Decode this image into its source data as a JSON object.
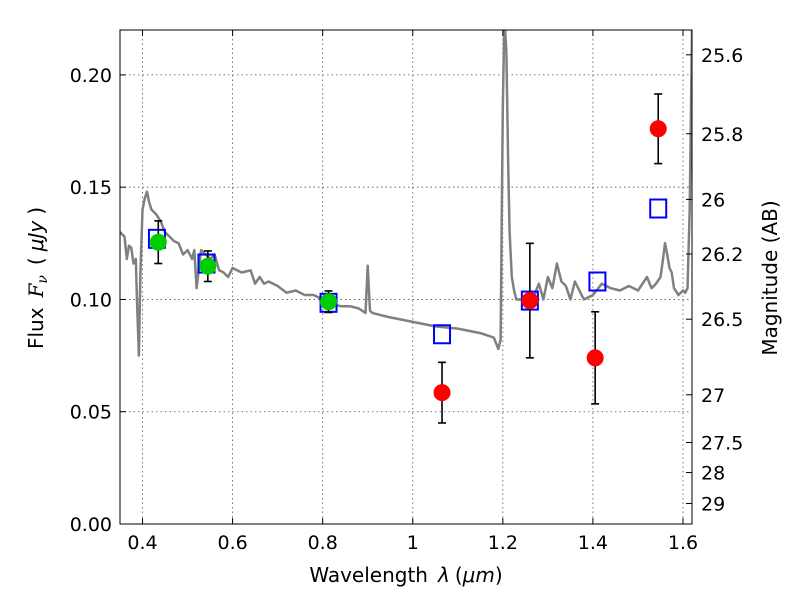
{
  "chart_data": {
    "type": "scatter",
    "xlabel": {
      "main": "Wavelength",
      "symbol": "λ",
      "unit_open": "(",
      "unit": "μm",
      "unit_close": ")"
    },
    "ylabel": {
      "main": "Flux",
      "symbol": "F",
      "sub": "ν",
      "unit_open": "(",
      "unit": "μJy",
      "unit_close": ")"
    },
    "y2label": "Magnitude (AB)",
    "xlim": [
      0.35,
      1.62
    ],
    "ylim": [
      0.0,
      0.22
    ],
    "xticks": [
      0.4,
      0.6,
      0.8,
      1.0,
      1.2,
      1.4,
      1.6
    ],
    "xtick_labels": [
      "0.4",
      "0.6",
      "0.8",
      "1",
      "1.2",
      "1.4",
      "1.6"
    ],
    "yticks": [
      0.0,
      0.05,
      0.1,
      0.15,
      0.2
    ],
    "ytick_labels": [
      "0.00",
      "0.05",
      "0.10",
      "0.15",
      "0.20"
    ],
    "y2ticks": [
      {
        "mag": 25.6,
        "label": "25.6"
      },
      {
        "mag": 25.8,
        "label": "25.8"
      },
      {
        "mag": 26.0,
        "label": "26"
      },
      {
        "mag": 26.2,
        "label": "26.2"
      },
      {
        "mag": 26.5,
        "label": "26.5"
      },
      {
        "mag": 27.0,
        "label": "27"
      },
      {
        "mag": 27.5,
        "label": "27.5"
      },
      {
        "mag": 28.0,
        "label": "28"
      },
      {
        "mag": 29.0,
        "label": "29"
      }
    ],
    "grid": true,
    "series": [
      {
        "kind": "line",
        "color": "#808080",
        "x": [
          0.35,
          0.36,
          0.365,
          0.37,
          0.375,
          0.38,
          0.385,
          0.388,
          0.392,
          0.395,
          0.4,
          0.405,
          0.41,
          0.415,
          0.42,
          0.43,
          0.44,
          0.45,
          0.46,
          0.47,
          0.48,
          0.49,
          0.5,
          0.51,
          0.515,
          0.52,
          0.53,
          0.54,
          0.55,
          0.56,
          0.57,
          0.58,
          0.59,
          0.6,
          0.62,
          0.64,
          0.65,
          0.66,
          0.67,
          0.68,
          0.7,
          0.72,
          0.74,
          0.76,
          0.78,
          0.8,
          0.82,
          0.84,
          0.86,
          0.88,
          0.895,
          0.9,
          0.905,
          0.91,
          0.93,
          0.95,
          1.0,
          1.05,
          1.1,
          1.15,
          1.18,
          1.19,
          1.195,
          1.2,
          1.203,
          1.205,
          1.208,
          1.212,
          1.215,
          1.22,
          1.225,
          1.23,
          1.25,
          1.27,
          1.28,
          1.29,
          1.3,
          1.31,
          1.32,
          1.33,
          1.34,
          1.35,
          1.36,
          1.38,
          1.4,
          1.42,
          1.44,
          1.46,
          1.48,
          1.5,
          1.52,
          1.53,
          1.54,
          1.55,
          1.555,
          1.56,
          1.565,
          1.57,
          1.575,
          1.58,
          1.59,
          1.6,
          1.605,
          1.61,
          1.615,
          1.62
        ],
        "y": [
          0.13,
          0.128,
          0.118,
          0.124,
          0.123,
          0.116,
          0.118,
          0.098,
          0.075,
          0.11,
          0.14,
          0.145,
          0.148,
          0.143,
          0.14,
          0.138,
          0.135,
          0.13,
          0.128,
          0.126,
          0.125,
          0.12,
          0.122,
          0.118,
          0.122,
          0.105,
          0.122,
          0.12,
          0.118,
          0.12,
          0.113,
          0.112,
          0.11,
          0.114,
          0.112,
          0.113,
          0.107,
          0.11,
          0.107,
          0.108,
          0.106,
          0.103,
          0.104,
          0.102,
          0.102,
          0.1,
          0.098,
          0.097,
          0.097,
          0.096,
          0.094,
          0.115,
          0.095,
          0.094,
          0.093,
          0.092,
          0.09,
          0.088,
          0.087,
          0.085,
          0.083,
          0.078,
          0.082,
          0.185,
          0.22,
          0.22,
          0.21,
          0.16,
          0.13,
          0.11,
          0.104,
          0.1,
          0.1,
          0.102,
          0.107,
          0.1,
          0.11,
          0.105,
          0.116,
          0.108,
          0.106,
          0.1,
          0.108,
          0.1,
          0.102,
          0.107,
          0.105,
          0.104,
          0.106,
          0.104,
          0.11,
          0.105,
          0.107,
          0.11,
          0.117,
          0.125,
          0.12,
          0.114,
          0.112,
          0.105,
          0.102,
          0.104,
          0.103,
          0.105,
          0.14,
          0.22
        ]
      },
      {
        "kind": "markers",
        "marker": "square",
        "facecolor": "none",
        "edgecolor": "#0000ff",
        "x": [
          0.432,
          0.542,
          0.813,
          1.065,
          1.26,
          1.41,
          1.545
        ],
        "y": [
          0.127,
          0.116,
          0.0985,
          0.0845,
          0.0995,
          0.108,
          0.1405
        ]
      },
      {
        "kind": "markers",
        "marker": "circle",
        "color": "#00cc00",
        "x": [
          0.435,
          0.545,
          0.813
        ],
        "y": [
          0.1255,
          0.1148,
          0.099
        ],
        "yerr": [
          0.0095,
          0.0068,
          0.0048
        ]
      },
      {
        "kind": "markers",
        "marker": "circle",
        "color": "#ff0000",
        "x": [
          1.065,
          1.26,
          1.405,
          1.545
        ],
        "y": [
          0.0585,
          0.0995,
          0.074,
          0.176
        ],
        "yerr": [
          0.0135,
          0.0255,
          0.0205,
          0.0155
        ]
      }
    ]
  }
}
